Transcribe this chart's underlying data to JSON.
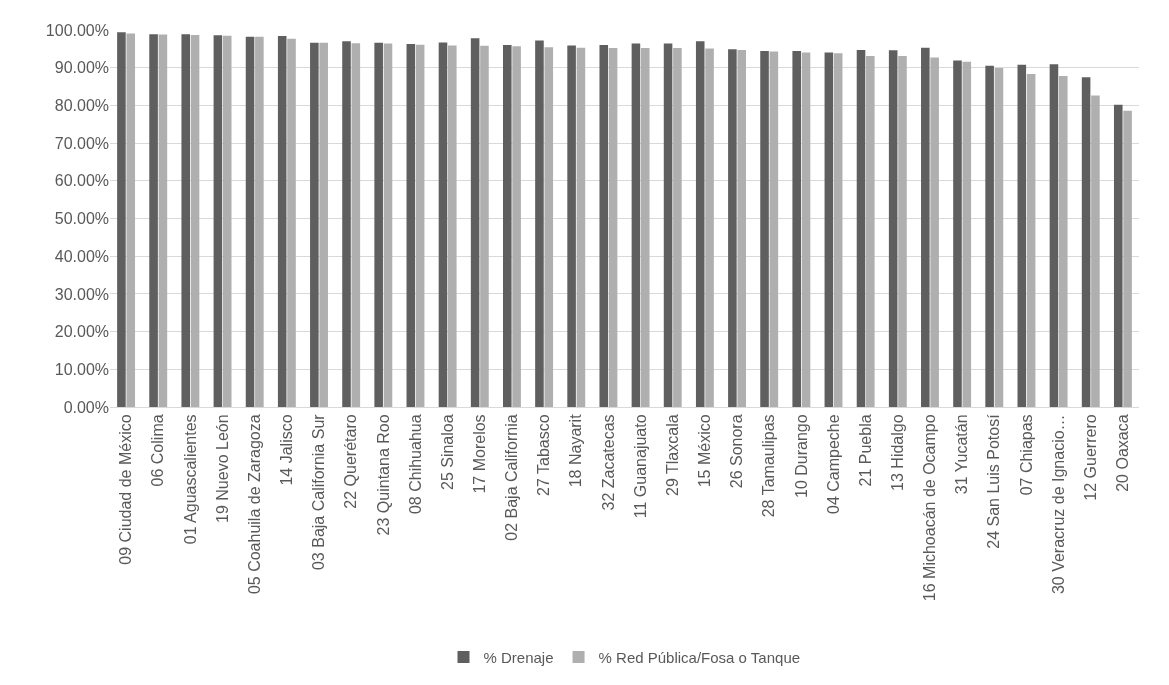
{
  "chart_data": {
    "type": "bar",
    "categories": [
      "09 Ciudad de México",
      "06 Colima",
      "01 Aguascalientes",
      "19 Nuevo León",
      "05 Coahuila de Zaragoza",
      "14 Jalisco",
      "03 Baja California Sur",
      "22 Querétaro",
      "23 Quintana Roo",
      "08 Chihuahua",
      "25 Sinaloa",
      "17 Morelos",
      "02 Baja California",
      "27 Tabasco",
      "18 Nayarit",
      "32 Zacatecas",
      "11 Guanajuato",
      "29 Tlaxcala",
      "15 México",
      "26 Sonora",
      "28 Tamaulipas",
      "10 Durango",
      "04 Campeche",
      "21 Puebla",
      "13 Hidalgo",
      "16 Michoacán de Ocampo",
      "31 Yucatán",
      "24 San Luis Potosí",
      "07 Chiapas",
      "30 Veracruz de Ignacio…",
      "12 Guerrero",
      "20 Oaxaca"
    ],
    "series": [
      {
        "name": "% Drenaje",
        "color": "#5f5f5f",
        "values": [
          99.4,
          98.9,
          98.9,
          98.6,
          98.2,
          98.4,
          96.6,
          97.0,
          96.6,
          96.3,
          96.7,
          97.8,
          96.0,
          97.2,
          95.9,
          96.0,
          96.4,
          96.4,
          97.0,
          94.9,
          94.4,
          94.4,
          94.0,
          94.7,
          94.6,
          95.3,
          91.9,
          90.5,
          90.8,
          90.9,
          87.5,
          80.2
        ]
      },
      {
        "name": "% Red Pública/Fosa o Tanque",
        "color": "#afafaf",
        "values": [
          99.1,
          98.8,
          98.7,
          98.5,
          98.2,
          97.7,
          96.6,
          96.5,
          96.4,
          96.1,
          95.9,
          95.8,
          95.7,
          95.4,
          95.3,
          95.2,
          95.2,
          95.2,
          95.1,
          94.7,
          94.3,
          94.0,
          93.8,
          93.1,
          93.1,
          92.7,
          91.6,
          89.9,
          88.3,
          87.8,
          82.6,
          78.6
        ]
      }
    ],
    "ylim": [
      0,
      100
    ],
    "yticks": [
      {
        "value": 0,
        "label": "0.00%"
      },
      {
        "value": 10,
        "label": "10.00%"
      },
      {
        "value": 20,
        "label": "20.00%"
      },
      {
        "value": 30,
        "label": "30.00%"
      },
      {
        "value": 40,
        "label": "40.00%"
      },
      {
        "value": 50,
        "label": "50.00%"
      },
      {
        "value": 60,
        "label": "60.00%"
      },
      {
        "value": 70,
        "label": "70.00%"
      },
      {
        "value": 80,
        "label": "80.00%"
      },
      {
        "value": 90,
        "label": "90.00%"
      },
      {
        "value": 100,
        "label": "100.00%"
      }
    ],
    "grid": "y",
    "legend": "bottom"
  }
}
